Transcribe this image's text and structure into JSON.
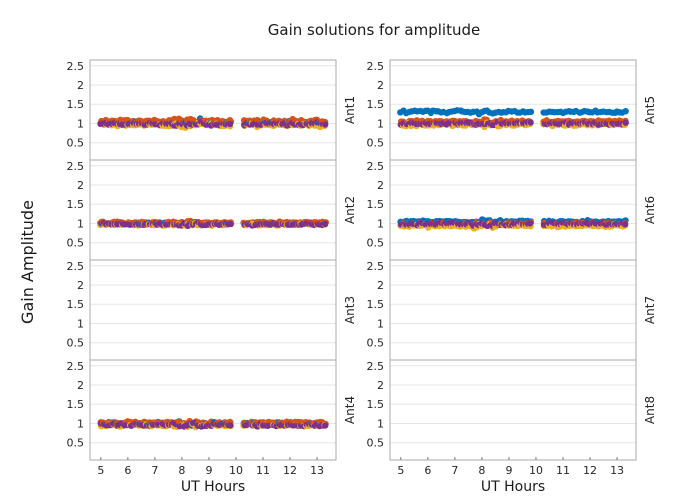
{
  "chart_data": {
    "type": "scatter",
    "title": "Gain solutions for amplitude",
    "xlabel": "UT Hours",
    "ylabel": "Gain Amplitude",
    "xlim": [
      4.6,
      13.7
    ],
    "ylim": [
      0.05,
      2.65
    ],
    "xticks": [
      5,
      6,
      7,
      8,
      9,
      10,
      11,
      12,
      13
    ],
    "yticks": [
      0.5,
      1,
      1.5,
      2,
      2.5
    ],
    "yticklabels": [
      "0.5",
      "1",
      "1.5",
      "2",
      "2.5"
    ],
    "gaps": [
      [
        9.85,
        10.25
      ]
    ],
    "colors": [
      "#0072bd",
      "#d95319",
      "#edb120",
      "#7e2f8e"
    ],
    "panels": [
      {
        "antenna": "Ant1",
        "has_data": true,
        "levels": [
          1.03,
          1.06,
          0.96,
          0.99
        ],
        "spread": 0.06
      },
      {
        "antenna": "Ant2",
        "has_data": true,
        "levels": [
          1.0,
          1.02,
          0.97,
          0.98
        ],
        "spread": 0.04
      },
      {
        "antenna": "Ant3",
        "has_data": false
      },
      {
        "antenna": "Ant4",
        "has_data": true,
        "levels": [
          1.0,
          1.02,
          0.95,
          0.96
        ],
        "spread": 0.05
      },
      {
        "antenna": "Ant5",
        "has_data": true,
        "levels": [
          1.3,
          1.05,
          0.97,
          1.0
        ],
        "spread": 0.05
      },
      {
        "antenna": "Ant6",
        "has_data": true,
        "levels": [
          1.05,
          1.0,
          0.94,
          0.99
        ],
        "spread": 0.05
      },
      {
        "antenna": "Ant7",
        "has_data": false
      },
      {
        "antenna": "Ant8",
        "has_data": false
      }
    ],
    "legend": "none",
    "grid": true
  }
}
